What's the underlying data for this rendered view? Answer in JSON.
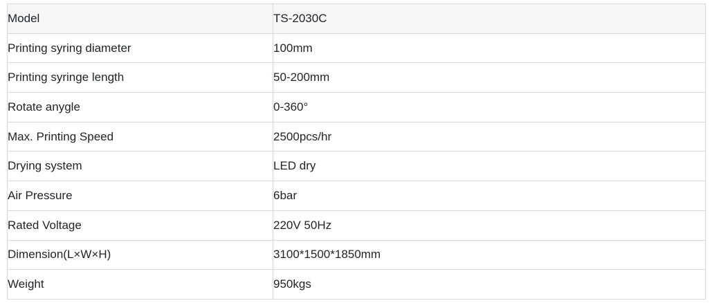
{
  "table": {
    "rows": [
      {
        "label": "Model",
        "value": "TS-2030C",
        "is_header": true
      },
      {
        "label": "Printing syring diameter",
        "value": "100mm",
        "is_header": false
      },
      {
        "label": "Printing syringe length",
        "value": "50-200mm",
        "is_header": false
      },
      {
        "label": "Rotate anygle",
        "value": "0-360°",
        "is_header": false
      },
      {
        "label": "Max. Printing Speed",
        "value": "2500pcs/hr",
        "is_header": false
      },
      {
        "label": "Drying system",
        "value": "LED dry",
        "is_header": false
      },
      {
        "label": "Air Pressure",
        "value": "6bar",
        "is_header": false
      },
      {
        "label": "Rated Voltage",
        "value": "220V 50Hz",
        "is_header": false
      },
      {
        "label": "Dimension(L×W×H)",
        "value": "3100*1500*1850mm",
        "is_header": false
      },
      {
        "label": "Weight",
        "value": "950kgs",
        "is_header": false
      }
    ],
    "colors": {
      "header_bg": "#f5f6f8",
      "row_bg": "#ffffff",
      "border": "#d9dadb",
      "text": "#1f2328",
      "page_bg": "#ffffff"
    }
  }
}
